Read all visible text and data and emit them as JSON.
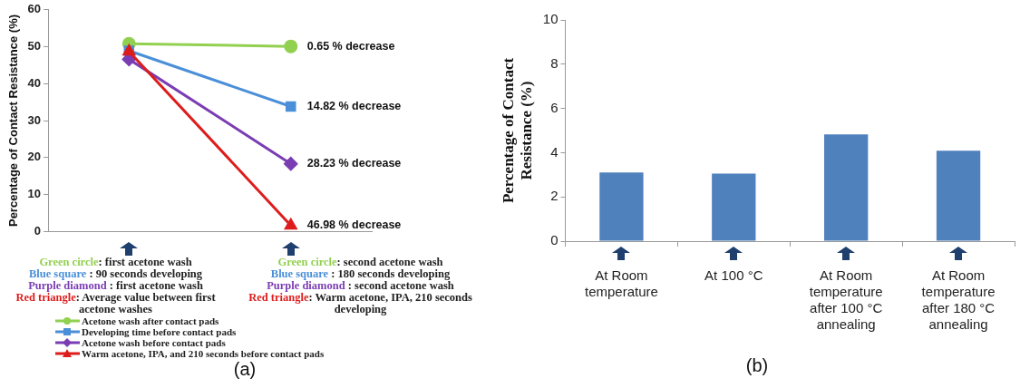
{
  "chart_data": [
    {
      "type": "line",
      "title": "(a)",
      "ylabel": "Percentage of Contact Resistance (%)",
      "categories": [
        null,
        null
      ],
      "series": [
        {
          "name": "Acetone wash after contact pads",
          "color": "#92d050",
          "marker": "circle",
          "values": [
            50.8,
            50.1
          ]
        },
        {
          "name": "Developing time before contact pads",
          "color": "#4a8fd8",
          "marker": "square",
          "values": [
            48.9,
            33.8
          ]
        },
        {
          "name": "Acetone wash before contact pads",
          "color": "#7a3db3",
          "marker": "diamond",
          "values": [
            46.6,
            18.3
          ]
        },
        {
          "name": "Warm acetone, IPA, and 210 seconds before contact pads",
          "color": "#dd1c1c",
          "marker": "triangle",
          "values": [
            48.7,
            1.6
          ]
        }
      ],
      "ylim": [
        0,
        60
      ],
      "yticks": [
        0,
        10,
        20,
        30,
        40,
        50,
        60
      ],
      "grid": false,
      "tick_labels": "y",
      "legend": "bottom",
      "line_style": "solid",
      "annotations": [
        "0.65 % decrease",
        "14.82 % decrease",
        "28.23 % decrease",
        "46.98 % decrease",
        "Green circle: first acetone wash",
        "Blue square : 90 seconds developing",
        "Purple diamond : first acetone wash",
        "Red triangle: Average value between first acetone washes",
        "Green circle: second acetone wash",
        "Blue square : 180 seconds developing",
        "Purple diamond : second acetone wash",
        "Red triangle: Warm acetone, IPA, 210 seconds developing"
      ]
    },
    {
      "type": "bar",
      "title": "(b)",
      "ylabel": "Percentage of Contact Resistance (%)",
      "categories": [
        "At Room temperature",
        "At 100 °C",
        "At Room temperature after 100 °C annealing",
        "At Room temperature after 180 °C annealing"
      ],
      "values": [
        3.1,
        3.05,
        4.83,
        4.09
      ],
      "color": "#4f81bd",
      "ylim": [
        0,
        10
      ],
      "yticks": [
        0,
        2,
        4,
        6,
        8,
        10
      ],
      "grid": false,
      "legend": false
    }
  ]
}
